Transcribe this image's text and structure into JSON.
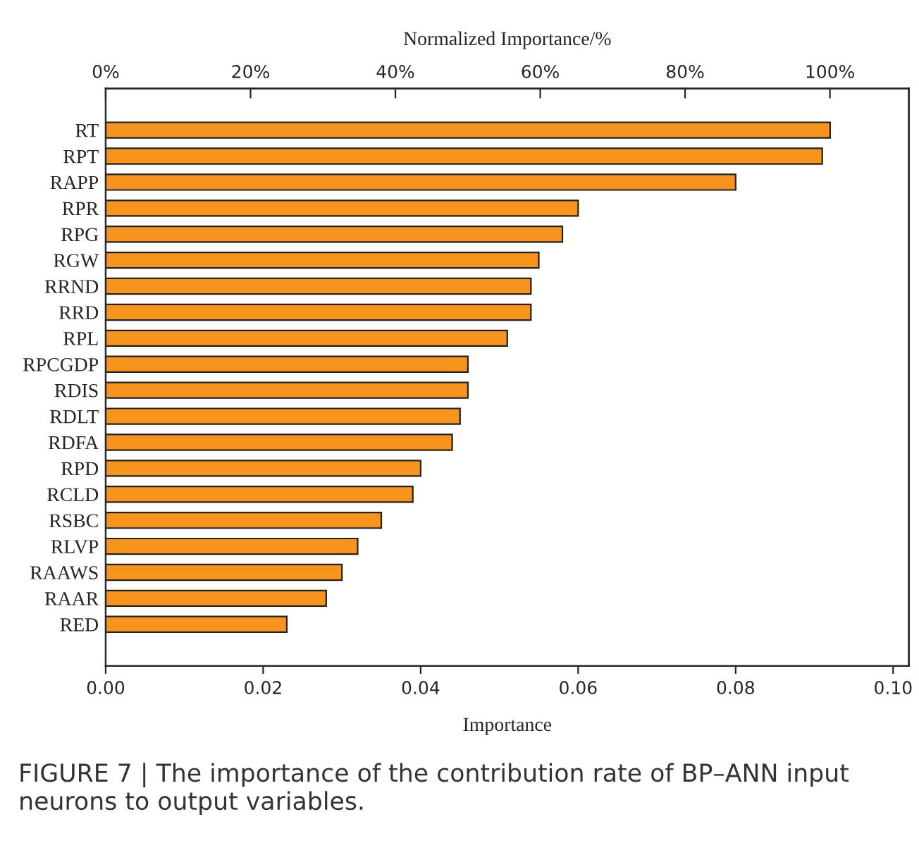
{
  "chart_data": {
    "type": "bar",
    "orientation": "horizontal",
    "categories": [
      "RT",
      "RPT",
      "RAPP",
      "RPR",
      "RPG",
      "RGW",
      "RRND",
      "RRD",
      "RPL",
      "RPCGDP",
      "RDIS",
      "RDLT",
      "RDFA",
      "RPD",
      "RCLD",
      "RSBC",
      "RLVP",
      "RAAWS",
      "RAAR",
      "RED"
    ],
    "values": [
      0.092,
      0.091,
      0.08,
      0.06,
      0.058,
      0.055,
      0.054,
      0.054,
      0.051,
      0.046,
      0.046,
      0.045,
      0.044,
      0.04,
      0.039,
      0.035,
      0.032,
      0.03,
      0.028,
      0.023
    ],
    "color": "#f7941d",
    "xlabel": "Importance",
    "x2label": "Normalized Importance/%",
    "xlim": [
      0,
      0.102
    ],
    "xticks": [
      {
        "value": 0,
        "label": "0.00"
      },
      {
        "value": 0.02,
        "label": "0.02"
      },
      {
        "value": 0.04,
        "label": "0.04"
      },
      {
        "value": 0.06,
        "label": "0.06"
      },
      {
        "value": 0.08,
        "label": "0.08"
      },
      {
        "value": 0.1,
        "label": "0.10"
      }
    ],
    "x2lim": [
      0,
      110.9
    ],
    "x2ticks": [
      {
        "value": 0,
        "label": "0%"
      },
      {
        "value": 20,
        "label": "20%"
      },
      {
        "value": 40,
        "label": "40%"
      },
      {
        "value": 60,
        "label": "60%"
      },
      {
        "value": 80,
        "label": "80%"
      },
      {
        "value": 100,
        "label": "100%"
      }
    ],
    "grid": false,
    "legend": false,
    "annotations": [
      "FIGURE 7 | The importance of the contribution rate of BP–ANN input neurons to output variables."
    ]
  }
}
